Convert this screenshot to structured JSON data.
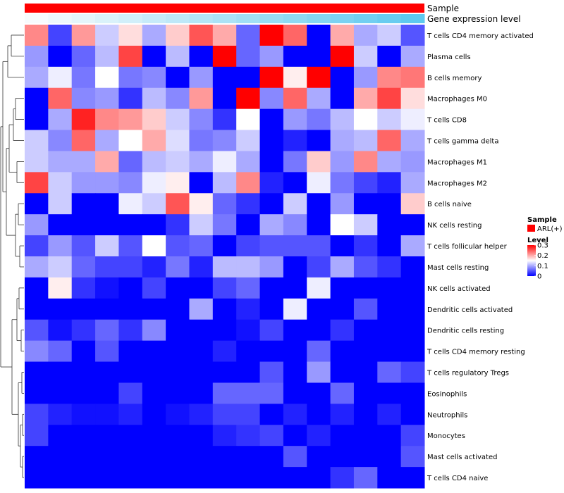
{
  "chart_data": {
    "type": "heatmap",
    "annotation_tracks": [
      {
        "name": "Sample",
        "color": "#ff0000"
      },
      {
        "name": "Gene expression level",
        "gradient": [
          "#f7fbfd",
          "#5ec9ef"
        ]
      }
    ],
    "rows": [
      "T cells CD4 memory activated",
      "Plasma cells",
      "B cells memory",
      "Macrophages M0",
      "T cells CD8",
      "T cells gamma delta",
      "Macrophages M1",
      "Macrophages M2",
      "B cells naive",
      "NK cells resting",
      "T cells follicular helper",
      "Mast cells resting",
      "NK cells activated",
      "Dendritic cells activated",
      "Dendritic cells resting",
      "T cells CD4 memory resting",
      "T cells regulatory  Tregs",
      "Eosinophils",
      "Neutrophils",
      "Monocytes",
      "Mast cells activated",
      "T cells CD4 naive"
    ],
    "n_columns": 17,
    "values": [
      [
        0.22,
        0.04,
        0.21,
        0.12,
        0.17,
        0.1,
        0.18,
        0.25,
        0.2,
        0.06,
        0.3,
        0.24,
        0.0,
        0.2,
        0.1,
        0.12,
        0.05
      ],
      [
        0.09,
        0.0,
        0.06,
        0.11,
        0.26,
        0.0,
        0.11,
        0.0,
        0.3,
        0.06,
        0.09,
        0.0,
        0.0,
        0.3,
        0.12,
        0.0,
        0.1
      ],
      [
        0.1,
        0.14,
        0.07,
        0.15,
        0.07,
        0.08,
        0.0,
        0.09,
        0.0,
        0.0,
        0.3,
        0.16,
        0.3,
        0.0,
        0.09,
        0.22,
        0.23
      ],
      [
        0.0,
        0.24,
        0.08,
        0.09,
        0.03,
        0.11,
        0.08,
        0.21,
        0.0,
        0.3,
        0.08,
        0.24,
        0.1,
        0.0,
        0.2,
        0.26,
        0.17
      ],
      [
        0.0,
        0.1,
        0.28,
        0.22,
        0.21,
        0.18,
        0.12,
        0.08,
        0.03,
        0.15,
        0.0,
        0.09,
        0.07,
        0.11,
        0.15,
        0.12,
        0.14
      ],
      [
        0.12,
        0.08,
        0.24,
        0.1,
        0.15,
        0.2,
        0.13,
        0.07,
        0.08,
        0.12,
        0.0,
        0.02,
        0.0,
        0.1,
        0.11,
        0.24,
        0.1
      ],
      [
        0.12,
        0.1,
        0.1,
        0.2,
        0.06,
        0.11,
        0.12,
        0.1,
        0.14,
        0.1,
        0.0,
        0.07,
        0.18,
        0.09,
        0.22,
        0.1,
        0.09
      ],
      [
        0.26,
        0.12,
        0.09,
        0.09,
        0.08,
        0.14,
        0.16,
        0.0,
        0.11,
        0.22,
        0.02,
        0.0,
        0.14,
        0.07,
        0.04,
        0.02,
        0.1
      ],
      [
        0.0,
        0.12,
        0.0,
        0.0,
        0.14,
        0.12,
        0.25,
        0.16,
        0.06,
        0.03,
        0.0,
        0.12,
        0.0,
        0.09,
        0.0,
        0.0,
        0.18
      ],
      [
        0.09,
        0.0,
        0.0,
        0.0,
        0.0,
        0.0,
        0.03,
        0.12,
        0.07,
        0.0,
        0.1,
        0.08,
        0.0,
        0.15,
        0.12,
        0.0,
        0.0
      ],
      [
        0.04,
        0.09,
        0.05,
        0.12,
        0.05,
        0.15,
        0.05,
        0.06,
        0.0,
        0.04,
        0.05,
        0.05,
        0.05,
        0.0,
        0.03,
        0.0,
        0.1
      ],
      [
        0.1,
        0.12,
        0.06,
        0.04,
        0.04,
        0.02,
        0.07,
        0.02,
        0.11,
        0.11,
        0.09,
        0.0,
        0.04,
        0.1,
        0.05,
        0.03,
        0.0
      ],
      [
        0.0,
        0.16,
        0.03,
        0.01,
        0.0,
        0.04,
        0.0,
        0.0,
        0.04,
        0.06,
        0.0,
        0.0,
        0.14,
        0.0,
        0.0,
        0.0,
        0.0
      ],
      [
        0.0,
        0.0,
        0.0,
        0.0,
        0.0,
        0.0,
        0.0,
        0.1,
        0.0,
        0.02,
        0.0,
        0.14,
        0.0,
        0.0,
        0.05,
        0.0,
        0.0
      ],
      [
        0.05,
        0.01,
        0.03,
        0.06,
        0.03,
        0.08,
        0.0,
        0.0,
        0.0,
        0.01,
        0.04,
        0.0,
        0.0,
        0.03,
        0.0,
        0.0,
        0.0
      ],
      [
        0.08,
        0.06,
        0.0,
        0.05,
        0.0,
        0.0,
        0.0,
        0.0,
        0.02,
        0.0,
        0.0,
        0.0,
        0.06,
        0.0,
        0.0,
        0.0,
        0.0
      ],
      [
        0.0,
        0.0,
        0.0,
        0.0,
        0.0,
        0.0,
        0.0,
        0.0,
        0.0,
        0.0,
        0.05,
        0.0,
        0.09,
        0.0,
        0.0,
        0.06,
        0.04
      ],
      [
        0.0,
        0.0,
        0.0,
        0.0,
        0.04,
        0.0,
        0.0,
        0.0,
        0.06,
        0.06,
        0.06,
        0.0,
        0.0,
        0.06,
        0.0,
        0.0,
        0.0
      ],
      [
        0.04,
        0.02,
        0.01,
        0.01,
        0.02,
        0.0,
        0.01,
        0.02,
        0.04,
        0.04,
        0.0,
        0.02,
        0.0,
        0.02,
        0.0,
        0.02,
        0.0
      ],
      [
        0.04,
        0.0,
        0.0,
        0.0,
        0.0,
        0.0,
        0.0,
        0.0,
        0.02,
        0.03,
        0.04,
        0.0,
        0.02,
        0.0,
        0.0,
        0.0,
        0.04
      ],
      [
        0.0,
        0.0,
        0.0,
        0.0,
        0.0,
        0.0,
        0.0,
        0.0,
        0.0,
        0.0,
        0.0,
        0.05,
        0.0,
        0.0,
        0.0,
        0.0,
        0.05
      ],
      [
        0.0,
        0.0,
        0.0,
        0.0,
        0.0,
        0.0,
        0.0,
        0.0,
        0.0,
        0.0,
        0.0,
        0.0,
        0.0,
        0.03,
        0.06,
        0.0,
        0.0
      ]
    ],
    "color_scale": {
      "min": 0,
      "mid": 0.15,
      "max": 0.3,
      "colors": [
        "#0000ff",
        "#ffffff",
        "#ff0000"
      ]
    },
    "legend": {
      "sample_title": "Sample",
      "sample_entry": "ARL(+)",
      "sample_color": "#ff0000",
      "level_title": "Level",
      "ticks": [
        "0.3",
        "0.2",
        "0.1",
        "0"
      ],
      "tick_values": [
        0.3,
        0.2,
        0.1,
        0
      ]
    },
    "dendrogram": "rows"
  }
}
